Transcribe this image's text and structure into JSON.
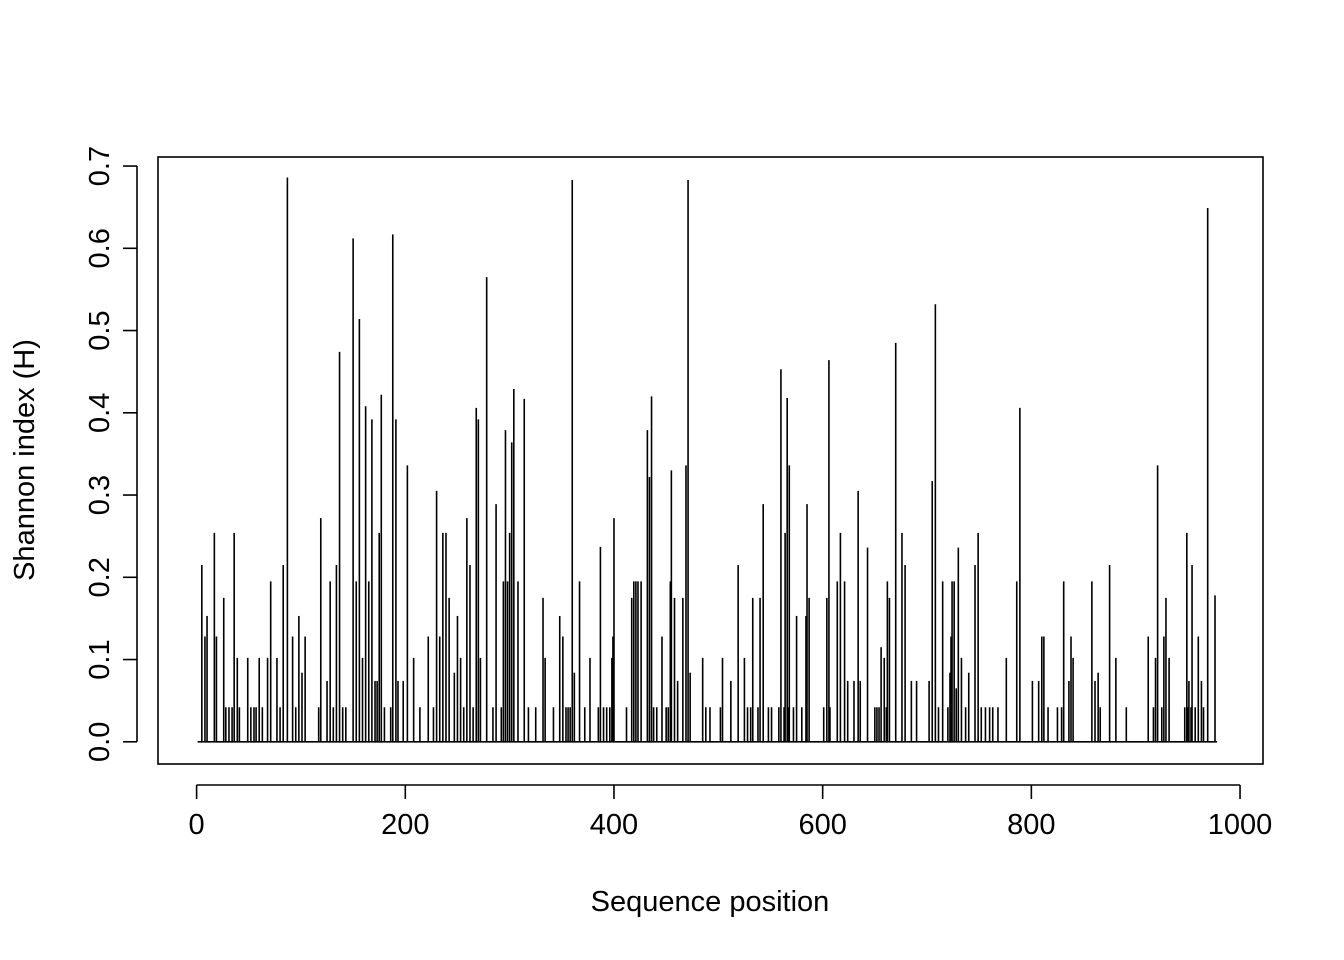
{
  "chart_data": {
    "type": "histogram-spike",
    "title": "",
    "xlabel": "Sequence position",
    "ylabel": "Shannon index (H)",
    "xlim": [
      -37,
      1022
    ],
    "ylim": [
      -0.027,
      0.711
    ],
    "x_ticks": [
      0,
      200,
      400,
      600,
      800,
      1000
    ],
    "x_tick_labels": [
      "0",
      "200",
      "400",
      "600",
      "800",
      "1000"
    ],
    "y_ticks": [
      0.0,
      0.1,
      0.2,
      0.3,
      0.4,
      0.5,
      0.6,
      0.7
    ],
    "y_tick_labels": [
      "0.0",
      "0.1",
      "0.2",
      "0.3",
      "0.4",
      "0.5",
      "0.6",
      "0.7"
    ],
    "baseline_range": [
      1,
      978
    ],
    "grid": false,
    "legend": "none",
    "line_color": "#000000",
    "points": [
      [
        5,
        0.215
      ],
      [
        8,
        0.128
      ],
      [
        10,
        0.153
      ],
      [
        17,
        0.254
      ],
      [
        19,
        0.128
      ],
      [
        26,
        0.175
      ],
      [
        28,
        0.042
      ],
      [
        31,
        0.042
      ],
      [
        34,
        0.042
      ],
      [
        36,
        0.254
      ],
      [
        39,
        0.102
      ],
      [
        41,
        0.042
      ],
      [
        49,
        0.102
      ],
      [
        52,
        0.042
      ],
      [
        55,
        0.042
      ],
      [
        57,
        0.042
      ],
      [
        60,
        0.102
      ],
      [
        63,
        0.042
      ],
      [
        68,
        0.102
      ],
      [
        71,
        0.195
      ],
      [
        77,
        0.102
      ],
      [
        80,
        0.042
      ],
      [
        83,
        0.215
      ],
      [
        87,
        0.686
      ],
      [
        92,
        0.128
      ],
      [
        95,
        0.042
      ],
      [
        98,
        0.153
      ],
      [
        101,
        0.084
      ],
      [
        104,
        0.128
      ],
      [
        117,
        0.042
      ],
      [
        119,
        0.272
      ],
      [
        125,
        0.074
      ],
      [
        128,
        0.195
      ],
      [
        131,
        0.042
      ],
      [
        134,
        0.215
      ],
      [
        137,
        0.474
      ],
      [
        140,
        0.042
      ],
      [
        143,
        0.042
      ],
      [
        150,
        0.612
      ],
      [
        153,
        0.195
      ],
      [
        156,
        0.514
      ],
      [
        159,
        0.102
      ],
      [
        162,
        0.408
      ],
      [
        165,
        0.195
      ],
      [
        168,
        0.392
      ],
      [
        171,
        0.074
      ],
      [
        173,
        0.074
      ],
      [
        175,
        0.254
      ],
      [
        177,
        0.422
      ],
      [
        180,
        0.042
      ],
      [
        186,
        0.042
      ],
      [
        188,
        0.617
      ],
      [
        191,
        0.392
      ],
      [
        193,
        0.074
      ],
      [
        198,
        0.074
      ],
      [
        202,
        0.336
      ],
      [
        208,
        0.102
      ],
      [
        214,
        0.042
      ],
      [
        222,
        0.128
      ],
      [
        227,
        0.042
      ],
      [
        230,
        0.305
      ],
      [
        233,
        0.128
      ],
      [
        236,
        0.254
      ],
      [
        239,
        0.254
      ],
      [
        242,
        0.175
      ],
      [
        247,
        0.084
      ],
      [
        250,
        0.153
      ],
      [
        253,
        0.102
      ],
      [
        256,
        0.042
      ],
      [
        259,
        0.272
      ],
      [
        262,
        0.215
      ],
      [
        265,
        0.042
      ],
      [
        268,
        0.406
      ],
      [
        270,
        0.392
      ],
      [
        272,
        0.102
      ],
      [
        278,
        0.565
      ],
      [
        284,
        0.042
      ],
      [
        287,
        0.289
      ],
      [
        292,
        0.042
      ],
      [
        294,
        0.195
      ],
      [
        296,
        0.379
      ],
      [
        298,
        0.195
      ],
      [
        300,
        0.254
      ],
      [
        302,
        0.364
      ],
      [
        304,
        0.429
      ],
      [
        308,
        0.195
      ],
      [
        314,
        0.417
      ],
      [
        318,
        0.042
      ],
      [
        325,
        0.042
      ],
      [
        332,
        0.175
      ],
      [
        334,
        0.102
      ],
      [
        342,
        0.042
      ],
      [
        348,
        0.153
      ],
      [
        351,
        0.128
      ],
      [
        354,
        0.042
      ],
      [
        356,
        0.042
      ],
      [
        358,
        0.042
      ],
      [
        360,
        0.683
      ],
      [
        362,
        0.084
      ],
      [
        367,
        0.195
      ],
      [
        372,
        0.042
      ],
      [
        377,
        0.102
      ],
      [
        385,
        0.042
      ],
      [
        387,
        0.237
      ],
      [
        390,
        0.042
      ],
      [
        393,
        0.042
      ],
      [
        396,
        0.042
      ],
      [
        398,
        0.102
      ],
      [
        399,
        0.128
      ],
      [
        400,
        0.272
      ],
      [
        412,
        0.042
      ],
      [
        417,
        0.175
      ],
      [
        419,
        0.195
      ],
      [
        421,
        0.195
      ],
      [
        423,
        0.195
      ],
      [
        426,
        0.195
      ],
      [
        432,
        0.379
      ],
      [
        434,
        0.322
      ],
      [
        436,
        0.42
      ],
      [
        438,
        0.042
      ],
      [
        441,
        0.042
      ],
      [
        446,
        0.128
      ],
      [
        450,
        0.042
      ],
      [
        452,
        0.042
      ],
      [
        454,
        0.195
      ],
      [
        455,
        0.33
      ],
      [
        458,
        0.175
      ],
      [
        461,
        0.074
      ],
      [
        466,
        0.175
      ],
      [
        469,
        0.336
      ],
      [
        471,
        0.683
      ],
      [
        473,
        0.084
      ],
      [
        485,
        0.102
      ],
      [
        488,
        0.042
      ],
      [
        492,
        0.042
      ],
      [
        502,
        0.042
      ],
      [
        504,
        0.102
      ],
      [
        512,
        0.074
      ],
      [
        519,
        0.215
      ],
      [
        525,
        0.102
      ],
      [
        528,
        0.042
      ],
      [
        531,
        0.042
      ],
      [
        533,
        0.175
      ],
      [
        538,
        0.042
      ],
      [
        540,
        0.175
      ],
      [
        543,
        0.289
      ],
      [
        548,
        0.042
      ],
      [
        551,
        0.042
      ],
      [
        558,
        0.042
      ],
      [
        560,
        0.453
      ],
      [
        563,
        0.042
      ],
      [
        564,
        0.254
      ],
      [
        566,
        0.418
      ],
      [
        567,
        0.042
      ],
      [
        568,
        0.336
      ],
      [
        572,
        0.042
      ],
      [
        575,
        0.153
      ],
      [
        580,
        0.042
      ],
      [
        584,
        0.153
      ],
      [
        585,
        0.289
      ],
      [
        587,
        0.175
      ],
      [
        601,
        0.042
      ],
      [
        604,
        0.175
      ],
      [
        606,
        0.464
      ],
      [
        607,
        0.042
      ],
      [
        614,
        0.195
      ],
      [
        617,
        0.254
      ],
      [
        621,
        0.195
      ],
      [
        624,
        0.074
      ],
      [
        630,
        0.074
      ],
      [
        634,
        0.305
      ],
      [
        636,
        0.074
      ],
      [
        643,
        0.236
      ],
      [
        650,
        0.042
      ],
      [
        652,
        0.042
      ],
      [
        654,
        0.042
      ],
      [
        656,
        0.115
      ],
      [
        659,
        0.102
      ],
      [
        661,
        0.042
      ],
      [
        662,
        0.195
      ],
      [
        664,
        0.175
      ],
      [
        670,
        0.485
      ],
      [
        676,
        0.254
      ],
      [
        679,
        0.215
      ],
      [
        685,
        0.074
      ],
      [
        690,
        0.074
      ],
      [
        702,
        0.074
      ],
      [
        705,
        0.317
      ],
      [
        708,
        0.532
      ],
      [
        711,
        0.042
      ],
      [
        715,
        0.195
      ],
      [
        720,
        0.042
      ],
      [
        722,
        0.084
      ],
      [
        723,
        0.128
      ],
      [
        724,
        0.195
      ],
      [
        726,
        0.195
      ],
      [
        728,
        0.065
      ],
      [
        730,
        0.236
      ],
      [
        733,
        0.102
      ],
      [
        737,
        0.042
      ],
      [
        740,
        0.084
      ],
      [
        746,
        0.215
      ],
      [
        749,
        0.254
      ],
      [
        752,
        0.042
      ],
      [
        756,
        0.042
      ],
      [
        760,
        0.042
      ],
      [
        763,
        0.042
      ],
      [
        768,
        0.042
      ],
      [
        776,
        0.102
      ],
      [
        786,
        0.195
      ],
      [
        789,
        0.406
      ],
      [
        801,
        0.074
      ],
      [
        807,
        0.074
      ],
      [
        810,
        0.128
      ],
      [
        812,
        0.128
      ],
      [
        816,
        0.042
      ],
      [
        825,
        0.042
      ],
      [
        829,
        0.042
      ],
      [
        831,
        0.195
      ],
      [
        836,
        0.074
      ],
      [
        838,
        0.128
      ],
      [
        840,
        0.102
      ],
      [
        858,
        0.195
      ],
      [
        861,
        0.074
      ],
      [
        864,
        0.084
      ],
      [
        866,
        0.042
      ],
      [
        875,
        0.215
      ],
      [
        881,
        0.102
      ],
      [
        891,
        0.042
      ],
      [
        912,
        0.128
      ],
      [
        917,
        0.042
      ],
      [
        919,
        0.102
      ],
      [
        921,
        0.336
      ],
      [
        925,
        0.042
      ],
      [
        927,
        0.128
      ],
      [
        929,
        0.175
      ],
      [
        932,
        0.102
      ],
      [
        947,
        0.042
      ],
      [
        949,
        0.254
      ],
      [
        950,
        0.042
      ],
      [
        951,
        0.074
      ],
      [
        953,
        0.042
      ],
      [
        954,
        0.215
      ],
      [
        957,
        0.042
      ],
      [
        960,
        0.128
      ],
      [
        963,
        0.074
      ],
      [
        965,
        0.042
      ],
      [
        969,
        0.649
      ],
      [
        976,
        0.178
      ]
    ]
  }
}
